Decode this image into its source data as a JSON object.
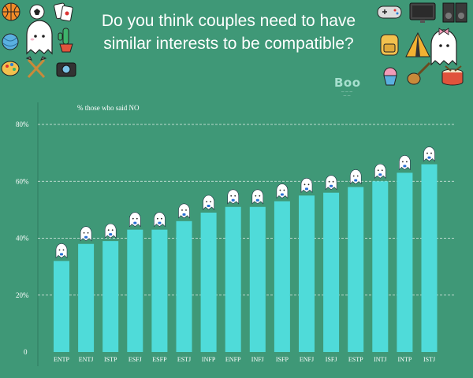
{
  "title": "Do you think couples need to have similar interests to be compatible?",
  "brand": {
    "name": "Boo"
  },
  "decorations": {
    "left": [
      "basketball-icon",
      "soccer-ball-icon",
      "cards-icon",
      "yarn-ball-icon",
      "ghost-mascot-icon",
      "cactus-icon",
      "palette-icon",
      "garden-tools-icon",
      "camera-icon"
    ],
    "right": [
      "gamepad-icon",
      "monitor-icon",
      "speaker-icon",
      "backpack-icon",
      "tent-icon",
      "ghost-mascot-bow-icon",
      "cupcake-icon",
      "guitar-icon",
      "drum-icon"
    ]
  },
  "colors": {
    "background": "#3f9877",
    "bar": "#4fdbd9",
    "grid": "#ffffff"
  },
  "chart_data": {
    "type": "bar",
    "subtitle": "% those who said NO",
    "categories": [
      "ENTP",
      "ENTJ",
      "ISTP",
      "ESFJ",
      "ESFP",
      "ESTJ",
      "INFP",
      "ENFP",
      "INFJ",
      "ISFP",
      "ENFJ",
      "ISFJ",
      "ESTP",
      "INTJ",
      "INTP",
      "ISTJ"
    ],
    "values": [
      32,
      38,
      39,
      43,
      43,
      46,
      49,
      51,
      51,
      53,
      55,
      56,
      58,
      60,
      63,
      66
    ],
    "y_ticks": [
      0,
      20,
      40,
      60,
      80
    ],
    "y_tick_labels": [
      "0",
      "20%",
      "40%",
      "60%",
      "80%"
    ],
    "ylim": [
      0,
      80
    ],
    "grid": true,
    "series_markers": "ghost-mascot-icon"
  }
}
